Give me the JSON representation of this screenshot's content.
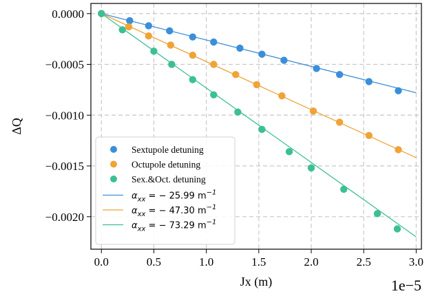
{
  "chart_data": {
    "type": "scatter",
    "xlabel": "Jx (m)",
    "ylabel": "ΔQ",
    "x_offset_label": "1e−5",
    "x_scale": 1e-05,
    "xlim": [
      -1e-06,
      3.05e-05
    ],
    "ylim": [
      -0.00232,
      0.0001
    ],
    "xticks": [
      0.0,
      0.5,
      1.0,
      1.5,
      2.0,
      2.5,
      3.0
    ],
    "xtick_labels": [
      "0.0",
      "0.5",
      "1.0",
      "1.5",
      "2.0",
      "2.5",
      "3.0"
    ],
    "yticks": [
      0.0,
      -0.0005,
      -0.001,
      -0.0015,
      -0.002
    ],
    "ytick_labels": [
      "0.0000",
      "−0.0005",
      "−0.0010",
      "−0.0015",
      "−0.0020"
    ],
    "grid": true,
    "legend_position": "lower-left",
    "series": [
      {
        "name": "Sextupole detuning",
        "kind": "scatter",
        "color": "#3b8fd9",
        "x": [
          0.0,
          2.7e-06,
          4.5e-06,
          6.5e-06,
          8.7e-06,
          1.07e-05,
          1.32e-05,
          1.53e-05,
          1.74e-05,
          2.05e-05,
          2.27e-05,
          2.55e-05,
          2.83e-05
        ],
        "y": [
          0.0,
          -7e-05,
          -0.00012,
          -0.00017,
          -0.00023,
          -0.00028,
          -0.00034,
          -0.0004,
          -0.00046,
          -0.00054,
          -0.0006,
          -0.00067,
          -0.00076
        ]
      },
      {
        "name": "Octupole detuning",
        "kind": "scatter",
        "color": "#f0a336",
        "x": [
          0.0,
          2.6e-06,
          4.5e-06,
          6.6e-06,
          8.7e-06,
          1.07e-05,
          1.28e-05,
          1.48e-05,
          1.72e-05,
          2.02e-05,
          2.27e-05,
          2.55e-05,
          2.83e-05
        ],
        "y": [
          0.0,
          -0.00013,
          -0.00022,
          -0.00031,
          -0.00041,
          -0.0005,
          -0.0006,
          -0.0007,
          -0.00081,
          -0.00096,
          -0.00107,
          -0.0012,
          -0.00134
        ]
      },
      {
        "name": "Sex.&Oct. detuning",
        "kind": "scatter",
        "color": "#3dbf96",
        "x": [
          0.0,
          2e-06,
          5e-06,
          6.7e-06,
          8.7e-06,
          1.07e-05,
          1.3e-05,
          1.53e-05,
          1.79e-05,
          2e-05,
          2.31e-05,
          2.63e-05,
          2.82e-05
        ],
        "y": [
          0.0,
          -0.00016,
          -0.00037,
          -0.0005,
          -0.00065,
          -0.0008,
          -0.00097,
          -0.00114,
          -0.00136,
          -0.00152,
          -0.00173,
          -0.00197,
          -0.00212
        ]
      }
    ],
    "fit_lines": [
      {
        "label_math": "α",
        "label_sub": "xx",
        "label_rest": " = − 25.99 m",
        "label_sup": "−1",
        "slope": -25.99,
        "color": "#3b8fd9"
      },
      {
        "label_math": "α",
        "label_sub": "xx",
        "label_rest": " = − 47.30 m",
        "label_sup": "−1",
        "slope": -47.3,
        "color": "#f0a336"
      },
      {
        "label_math": "α",
        "label_sub": "xx",
        "label_rest": " = − 73.29 m",
        "label_sup": "−1",
        "slope": -73.29,
        "color": "#3dbf96"
      }
    ]
  }
}
